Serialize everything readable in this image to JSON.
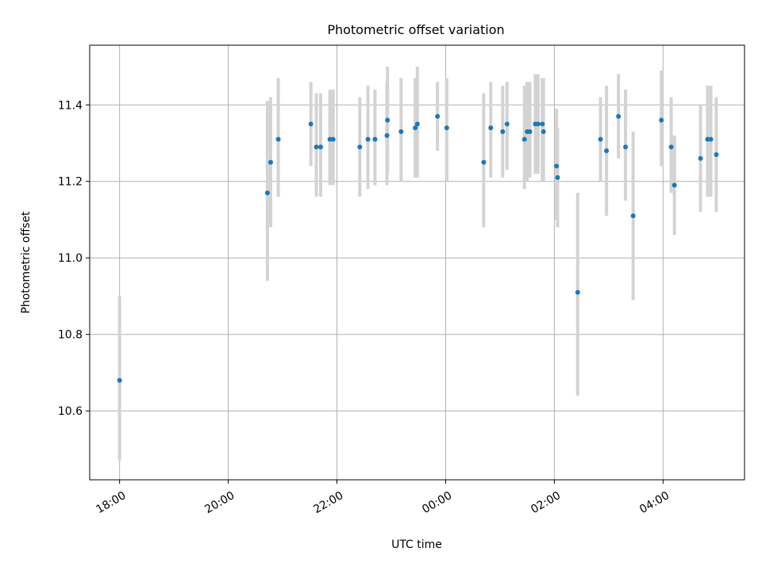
{
  "chart_data": {
    "type": "scatter",
    "title": "Photometric offset variation",
    "xlabel": "UTC time",
    "ylabel": "Photometric offset",
    "grid": true,
    "xlim_hours": [
      17.45,
      29.5
    ],
    "ylim": [
      10.42,
      11.556
    ],
    "x_ticks": [
      {
        "hours": 18,
        "label": "18:00"
      },
      {
        "hours": 20,
        "label": "20:00"
      },
      {
        "hours": 22,
        "label": "22:00"
      },
      {
        "hours": 24,
        "label": "00:00"
      },
      {
        "hours": 26,
        "label": "02:00"
      },
      {
        "hours": 28,
        "label": "04:00"
      }
    ],
    "y_ticks": [
      {
        "value": 10.6,
        "label": "10.6"
      },
      {
        "value": 10.8,
        "label": "10.8"
      },
      {
        "value": 11.0,
        "label": "11.0"
      },
      {
        "value": 11.2,
        "label": "11.2"
      },
      {
        "value": 11.4,
        "label": "11.4"
      }
    ],
    "colors": {
      "point": "#1f77b4",
      "errorbar": "#d3d3d3",
      "grid": "#b0b0b0",
      "axes": "#000000"
    },
    "series": [
      {
        "name": "offset",
        "x_hours": [
          18.0,
          20.72,
          20.78,
          20.92,
          21.52,
          21.62,
          21.7,
          21.87,
          21.93,
          22.42,
          22.57,
          22.7,
          22.92,
          22.93,
          23.18,
          23.44,
          23.48,
          23.85,
          24.02,
          24.7,
          24.83,
          25.05,
          25.13,
          25.45,
          25.5,
          25.55,
          25.65,
          25.7,
          25.78,
          25.8,
          26.04,
          26.06,
          26.43,
          26.85,
          26.96,
          27.18,
          27.31,
          27.45,
          27.97,
          28.15,
          28.21,
          28.69,
          28.82,
          28.88,
          28.98
        ],
        "y": [
          10.68,
          11.17,
          11.25,
          11.31,
          11.35,
          11.29,
          11.29,
          11.31,
          11.31,
          11.29,
          11.31,
          11.31,
          11.32,
          11.36,
          11.33,
          11.34,
          11.35,
          11.37,
          11.34,
          11.25,
          11.34,
          11.33,
          11.35,
          11.31,
          11.33,
          11.33,
          11.35,
          11.35,
          11.35,
          11.33,
          11.24,
          11.21,
          10.91,
          11.31,
          11.28,
          11.37,
          11.29,
          11.11,
          11.36,
          11.29,
          11.19,
          11.26,
          11.31,
          11.31,
          11.27
        ],
        "err_low": [
          10.47,
          10.94,
          11.08,
          11.16,
          11.24,
          11.16,
          11.16,
          11.19,
          11.19,
          11.16,
          11.18,
          11.19,
          11.19,
          11.22,
          11.2,
          11.21,
          11.21,
          11.28,
          11.2,
          11.08,
          11.21,
          11.21,
          11.23,
          11.18,
          11.2,
          11.21,
          11.22,
          11.22,
          11.2,
          11.2,
          11.1,
          11.08,
          10.64,
          11.2,
          11.11,
          11.26,
          11.15,
          10.89,
          11.24,
          11.17,
          11.06,
          11.12,
          11.16,
          11.16,
          11.12
        ],
        "err_high": [
          10.9,
          11.41,
          11.42,
          11.47,
          11.46,
          11.43,
          11.43,
          11.44,
          11.44,
          11.42,
          11.45,
          11.44,
          11.46,
          11.5,
          11.47,
          11.47,
          11.5,
          11.46,
          11.47,
          11.43,
          11.46,
          11.45,
          11.46,
          11.45,
          11.46,
          11.46,
          11.48,
          11.48,
          11.47,
          11.47,
          11.39,
          11.34,
          11.17,
          11.42,
          11.45,
          11.48,
          11.44,
          11.33,
          11.49,
          11.42,
          11.32,
          11.4,
          11.45,
          11.45,
          11.42
        ]
      }
    ]
  }
}
